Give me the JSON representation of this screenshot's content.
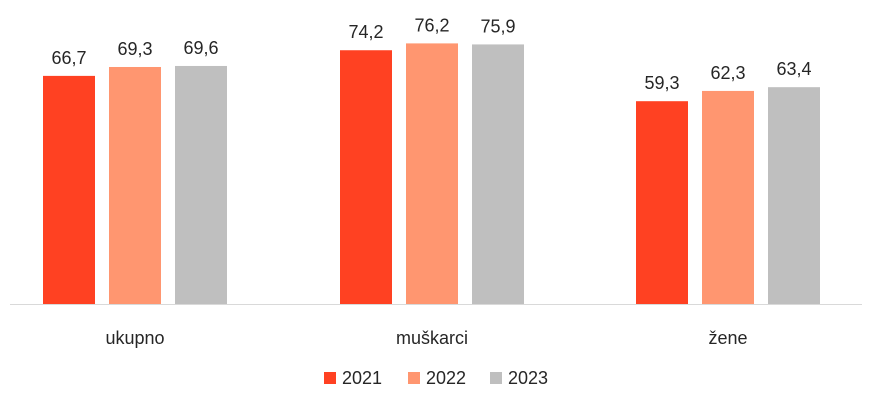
{
  "chart_data": {
    "type": "bar",
    "categories": [
      "ukupno",
      "muškarci",
      "žene"
    ],
    "series": [
      {
        "name": "2021",
        "values": [
          66.7,
          74.2,
          59.3
        ],
        "value_labels": [
          "66,7",
          "74,2",
          "59,3"
        ],
        "color": "#FF4122"
      },
      {
        "name": "2022",
        "values": [
          69.3,
          76.2,
          62.3
        ],
        "value_labels": [
          "69,3",
          "76,2",
          "62,3"
        ],
        "color": "#FF9670"
      },
      {
        "name": "2023",
        "values": [
          69.6,
          75.9,
          63.4
        ],
        "value_labels": [
          "69,6",
          "75,9",
          "63,4"
        ],
        "color": "#BFBFBF"
      }
    ],
    "title": "",
    "xlabel": "",
    "ylabel": "",
    "ylim": [
      0,
      90
    ],
    "grid": false,
    "legend_position": "bottom",
    "axis_color": "#D9D9D9"
  }
}
